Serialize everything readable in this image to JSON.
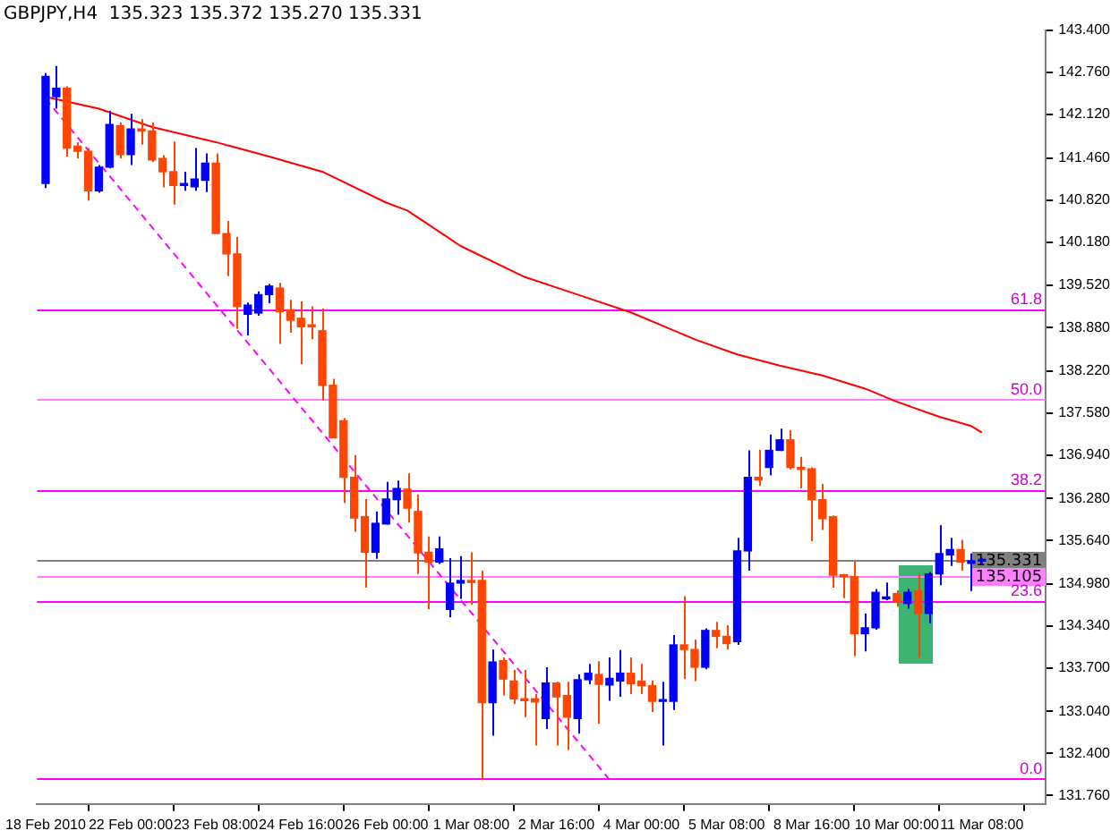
{
  "chart_data": {
    "type": "candlestick",
    "title": "GBPJPY,H4  135.323 135.372 135.270 135.331",
    "categories": [
      "18 Feb 2010",
      null,
      null,
      null,
      null,
      null,
      null,
      null,
      "22 Feb 00:00",
      null,
      null,
      null,
      null,
      null,
      null,
      null,
      "23 Feb 08:00",
      null,
      null,
      null,
      null,
      null,
      null,
      null,
      "24 Feb 16:00",
      null,
      null,
      null,
      null,
      null,
      null,
      null,
      "26 Feb 00:00",
      null,
      null,
      null,
      null,
      null,
      null,
      null,
      "1 Mar 08:00",
      null,
      null,
      null,
      null,
      null,
      null,
      null,
      "2 Mar 16:00",
      null,
      null,
      null,
      null,
      null,
      null,
      null,
      "4 Mar 00:00",
      null,
      null,
      null,
      null,
      null,
      null,
      null,
      "5 Mar 08:00",
      null,
      null,
      null,
      null,
      null,
      null,
      null,
      "8 Mar 16:00",
      null,
      null,
      null,
      null,
      null,
      null,
      null,
      "10 Mar 00:00",
      null,
      null,
      null,
      null,
      null,
      null,
      null,
      "11 Mar 08:00"
    ],
    "ohlc": [
      [
        141.07,
        142.75,
        141.0,
        142.7
      ],
      [
        142.39,
        142.86,
        142.21,
        142.52
      ],
      [
        142.52,
        142.55,
        141.48,
        141.61
      ],
      [
        141.64,
        141.7,
        141.45,
        141.56
      ],
      [
        141.56,
        141.61,
        140.81,
        140.96
      ],
      [
        140.96,
        141.35,
        140.93,
        141.32
      ],
      [
        141.32,
        142.18,
        141.3,
        141.97
      ],
      [
        141.95,
        142.0,
        141.45,
        141.51
      ],
      [
        141.51,
        142.13,
        141.35,
        141.9
      ],
      [
        141.9,
        142.05,
        141.66,
        141.87
      ],
      [
        141.87,
        142.0,
        141.4,
        141.43
      ],
      [
        141.45,
        141.5,
        141.01,
        141.25
      ],
      [
        141.25,
        141.71,
        140.75,
        141.04
      ],
      [
        141.04,
        141.25,
        140.96,
        141.07
      ],
      [
        141.02,
        141.61,
        140.96,
        141.14
      ],
      [
        141.12,
        141.53,
        140.94,
        141.38
      ],
      [
        141.38,
        141.53,
        140.31,
        140.31
      ],
      [
        140.31,
        140.5,
        139.66,
        140.0
      ],
      [
        140.0,
        140.26,
        138.86,
        139.2
      ],
      [
        139.08,
        139.26,
        138.76,
        139.22
      ],
      [
        139.1,
        139.43,
        139.06,
        139.38
      ],
      [
        139.38,
        139.54,
        139.25,
        139.51
      ],
      [
        139.48,
        139.56,
        138.63,
        139.12
      ],
      [
        139.15,
        139.3,
        138.8,
        138.99
      ],
      [
        139.02,
        139.28,
        138.32,
        138.89
      ],
      [
        138.92,
        139.2,
        138.7,
        138.89
      ],
      [
        138.83,
        139.17,
        137.77,
        138.0
      ],
      [
        138.0,
        138.1,
        137.2,
        137.2
      ],
      [
        137.46,
        137.5,
        136.21,
        136.6
      ],
      [
        136.6,
        136.94,
        135.77,
        135.98
      ],
      [
        136.0,
        136.27,
        134.92,
        135.46
      ],
      [
        135.46,
        136.08,
        135.36,
        135.9
      ],
      [
        135.89,
        136.53,
        135.88,
        136.27
      ],
      [
        136.26,
        136.55,
        136.03,
        136.43
      ],
      [
        136.42,
        136.66,
        135.91,
        136.13
      ],
      [
        136.08,
        136.34,
        135.13,
        135.45
      ],
      [
        135.46,
        135.7,
        134.59,
        135.31
      ],
      [
        135.31,
        135.7,
        135.28,
        135.51
      ],
      [
        134.59,
        135.37,
        134.47,
        134.99
      ],
      [
        134.99,
        135.4,
        134.75,
        135.03
      ],
      [
        135.03,
        135.46,
        134.66,
        135.0
      ],
      [
        135.03,
        135.18,
        131.99,
        133.17
      ],
      [
        133.17,
        133.98,
        132.67,
        133.79
      ],
      [
        133.81,
        133.86,
        133.28,
        133.53
      ],
      [
        133.5,
        133.67,
        133.15,
        133.23
      ],
      [
        133.23,
        133.67,
        132.95,
        133.2
      ],
      [
        133.23,
        133.3,
        132.52,
        133.18
      ],
      [
        132.93,
        133.71,
        132.77,
        133.47
      ],
      [
        133.47,
        133.49,
        132.52,
        133.26
      ],
      [
        133.28,
        133.49,
        132.45,
        132.95
      ],
      [
        132.93,
        133.6,
        132.7,
        133.52
      ],
      [
        133.52,
        133.76,
        133.45,
        133.62
      ],
      [
        133.6,
        133.8,
        132.85,
        133.45
      ],
      [
        133.44,
        133.86,
        133.2,
        133.54
      ],
      [
        133.5,
        133.97,
        133.26,
        133.62
      ],
      [
        133.62,
        133.86,
        133.3,
        133.46
      ],
      [
        133.5,
        133.76,
        133.3,
        133.43
      ],
      [
        133.43,
        133.51,
        133.03,
        133.19
      ],
      [
        133.19,
        133.49,
        132.52,
        133.21
      ],
      [
        133.19,
        134.2,
        133.06,
        134.05
      ],
      [
        134.05,
        134.79,
        133.53,
        133.98
      ],
      [
        133.98,
        134.13,
        133.5,
        133.71
      ],
      [
        133.71,
        134.3,
        133.68,
        134.27
      ],
      [
        134.27,
        134.4,
        134.0,
        134.18
      ],
      [
        134.18,
        134.35,
        133.98,
        134.07
      ],
      [
        134.1,
        135.68,
        134.05,
        135.48
      ],
      [
        135.48,
        137.01,
        135.18,
        136.6
      ],
      [
        136.6,
        137.02,
        136.47,
        136.56
      ],
      [
        136.75,
        137.25,
        136.63,
        137.01
      ],
      [
        137.01,
        137.34,
        137.0,
        137.17
      ],
      [
        137.17,
        137.32,
        136.72,
        136.75
      ],
      [
        136.75,
        136.91,
        136.43,
        136.72
      ],
      [
        136.73,
        136.75,
        135.63,
        136.26
      ],
      [
        136.26,
        136.5,
        135.8,
        135.97
      ],
      [
        136.0,
        136.02,
        134.92,
        135.11
      ],
      [
        135.11,
        135.13,
        134.76,
        135.09
      ],
      [
        135.09,
        135.32,
        133.88,
        134.22
      ],
      [
        134.22,
        134.53,
        133.95,
        134.31
      ],
      [
        134.31,
        134.9,
        134.28,
        134.85
      ],
      [
        134.75,
        135.0,
        134.73,
        134.78
      ],
      [
        134.83,
        134.88,
        134.63,
        134.7
      ],
      [
        134.68,
        134.9,
        134.6,
        134.85
      ],
      [
        134.87,
        135.13,
        133.86,
        134.53
      ],
      [
        134.53,
        135.16,
        134.38,
        135.13
      ],
      [
        135.13,
        135.87,
        134.96,
        135.44
      ],
      [
        135.42,
        135.68,
        135.25,
        135.5
      ],
      [
        135.5,
        135.65,
        135.18,
        135.31
      ],
      [
        135.29,
        135.44,
        134.87,
        135.33
      ],
      [
        135.323,
        135.372,
        135.27,
        135.331
      ]
    ],
    "colors": [
      "#0000ff",
      "#0000ff",
      "#ff4500",
      "#ff4500",
      "#ff4500",
      "#0000ff",
      "#0000ff",
      "#ff4500",
      "#0000ff",
      "#ff4500",
      "#ff4500",
      "#ff4500",
      "#ff4500",
      "#0000ff",
      "#0000ff",
      "#0000ff",
      "#ff4500",
      "#ff4500",
      "#ff4500",
      "#0000ff",
      "#0000ff",
      "#0000ff",
      "#ff4500",
      "#ff4500",
      "#ff4500",
      "#ff4500",
      "#ff4500",
      "#ff4500",
      "#ff4500",
      "#ff4500",
      "#ff4500",
      "#0000ff",
      "#0000ff",
      "#0000ff",
      "#ff4500",
      "#ff4500",
      "#ff4500",
      "#0000ff",
      "#0000ff",
      "#0000ff",
      "#ff4500",
      "#ff4500",
      "#0000ff",
      "#ff4500",
      "#ff4500",
      "#ff4500",
      "#ff4500",
      "#0000ff",
      "#ff4500",
      "#ff4500",
      "#0000ff",
      "#0000ff",
      "#ff4500",
      "#0000ff",
      "#0000ff",
      "#ff4500",
      "#ff4500",
      "#ff4500",
      "#0000ff",
      "#0000ff",
      "#ff4500",
      "#ff4500",
      "#0000ff",
      "#ff4500",
      "#ff4500",
      "#0000ff",
      "#0000ff",
      "#ff4500",
      "#0000ff",
      "#0000ff",
      "#ff4500",
      "#ff4500",
      "#ff4500",
      "#ff4500",
      "#ff4500",
      "#ff4500",
      "#ff4500",
      "#0000ff",
      "#0000ff",
      "#0000ff",
      "#ff4500",
      "#0000ff",
      "#ff4500",
      "#0000ff",
      "#0000ff",
      "#0000ff",
      "#ff4500",
      "#0000ff",
      "#0000ff"
    ],
    "series": [
      {
        "type": "line",
        "color": "#ff0000",
        "values": [
          142.39,
          null,
          null,
          null,
          null,
          142.21,
          null,
          null,
          null,
          null,
          141.93,
          null,
          null,
          null,
          null,
          null,
          141.7,
          null,
          null,
          null,
          null,
          141.48,
          null,
          null,
          null,
          null,
          141.25,
          null,
          null,
          null,
          null,
          null,
          140.78,
          null,
          140.66,
          null,
          null,
          null,
          null,
          140.12,
          null,
          null,
          null,
          null,
          null,
          139.65,
          null,
          null,
          null,
          null,
          139.38,
          null,
          null,
          null,
          null,
          139.11,
          null,
          null,
          null,
          null,
          null,
          138.7,
          null,
          null,
          null,
          138.47,
          null,
          null,
          null,
          138.3,
          null,
          null,
          null,
          138.15,
          null,
          null,
          null,
          137.95,
          null,
          null,
          137.75,
          null,
          null,
          null,
          137.52,
          null,
          null,
          137.38,
          137.28
        ]
      },
      {
        "type": "line",
        "color": "#ff00ff",
        "line_style": "dashed",
        "values": [
          142.36,
          null,
          null,
          null,
          null,
          null,
          null,
          null,
          null,
          null,
          null,
          null,
          null,
          null,
          null,
          null,
          null,
          null,
          null,
          null,
          null,
          null,
          null,
          null,
          null,
          null,
          null,
          null,
          null,
          null,
          null,
          null,
          null,
          null,
          null,
          null,
          null,
          null,
          null,
          null,
          null,
          null,
          null,
          null,
          null,
          null,
          null,
          null,
          null,
          null,
          null,
          null,
          null,
          132.0,
          null,
          null,
          null,
          null,
          null,
          null,
          null,
          null,
          null,
          null,
          null,
          null,
          null,
          null,
          null,
          null,
          null,
          null,
          null,
          null,
          null,
          null,
          null,
          null,
          null,
          null,
          null,
          null,
          null,
          null,
          null,
          null,
          null,
          null,
          null
        ]
      }
    ],
    "ylim": [
      131.63,
      143.4
    ],
    "yticks": [
      {
        "value": 143.4,
        "label": "143.400"
      },
      {
        "value": 142.76,
        "label": "142.760"
      },
      {
        "value": 142.12,
        "label": "142.120"
      },
      {
        "value": 141.46,
        "label": "141.460"
      },
      {
        "value": 140.82,
        "label": "140.820"
      },
      {
        "value": 140.18,
        "label": "140.180"
      },
      {
        "value": 139.52,
        "label": "139.520"
      },
      {
        "value": 138.88,
        "label": "138.880"
      },
      {
        "value": 138.22,
        "label": "138.220"
      },
      {
        "value": 137.58,
        "label": "137.580"
      },
      {
        "value": 136.94,
        "label": "136.940"
      },
      {
        "value": 136.28,
        "label": "136.280"
      },
      {
        "value": 135.64,
        "label": "135.640"
      },
      {
        "value": 134.98,
        "label": "134.980"
      },
      {
        "value": 134.34,
        "label": "134.340"
      },
      {
        "value": 133.7,
        "label": "133.700"
      },
      {
        "value": 133.04,
        "label": "133.040"
      },
      {
        "value": 132.4,
        "label": "132.400"
      },
      {
        "value": 131.76,
        "label": "131.760"
      }
    ],
    "ref_lines": [
      {
        "axis": "y",
        "value": 139.15,
        "color": "#ff00ff"
      },
      {
        "axis": "y",
        "value": 137.78,
        "color": "#ff80ff"
      },
      {
        "axis": "y",
        "value": 136.4,
        "color": "#ff00ff"
      },
      {
        "axis": "y",
        "value": 134.72,
        "color": "#ff00ff"
      },
      {
        "axis": "y",
        "value": 132.01,
        "color": "#ff00ff"
      },
      {
        "axis": "y",
        "value": 135.331,
        "label": "135.331",
        "color": "#808080"
      },
      {
        "axis": "y",
        "value": 135.105,
        "label": "135.105",
        "color": "#ff80ff"
      }
    ],
    "annotations": [
      {
        "text": "61.8",
        "y": 139.15
      },
      {
        "text": "50.0",
        "y": 137.78
      },
      {
        "text": "38.2",
        "y": 136.4
      },
      {
        "text": "23.6",
        "y": 134.72
      },
      {
        "text": "0.0",
        "y": 132.01
      }
    ],
    "legend": false,
    "grid": false
  }
}
